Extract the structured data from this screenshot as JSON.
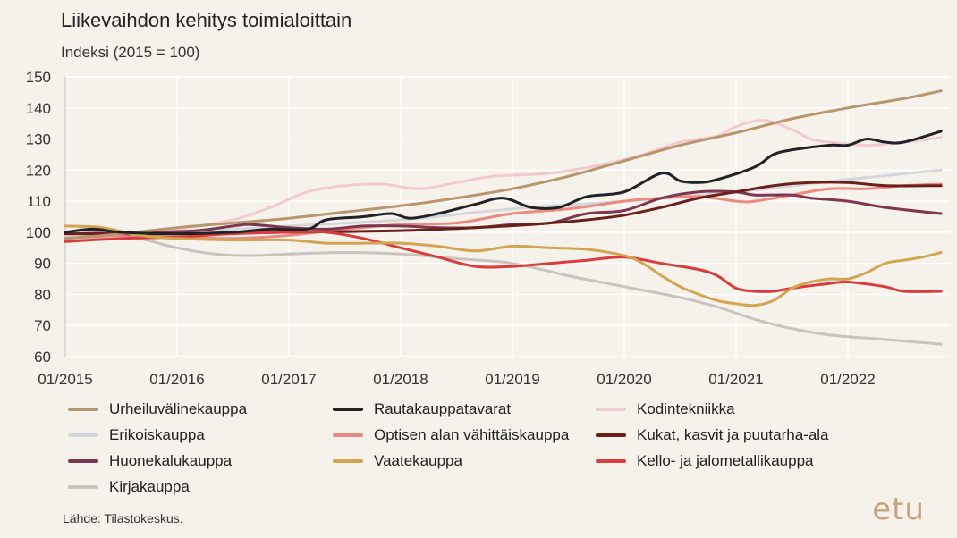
{
  "title": "Liikevaihdon kehitys toimialoittain",
  "subtitle": "Indeksi (2015 = 100)",
  "source": "Lähde: Tilastokeskus.",
  "logo": "etu",
  "chart_data": {
    "type": "line",
    "title": "Liikevaihdon kehitys toimialoittain",
    "subtitle": "Indeksi (2015 = 100)",
    "x_labels": [
      "01/2015",
      "01/2016",
      "01/2017",
      "01/2018",
      "01/2019",
      "01/2020",
      "01/2021",
      "01/2022"
    ],
    "x_start": "2015-01",
    "ylim": [
      60,
      150
    ],
    "yticks": [
      60,
      70,
      80,
      90,
      100,
      110,
      120,
      130,
      140,
      150
    ],
    "grid": true,
    "legend_position": "bottom",
    "series": [
      {
        "name": "Urheiluvälinekauppa",
        "color": "#b8956a",
        "points": [
          [
            0,
            98
          ],
          [
            6,
            99.5
          ],
          [
            12,
            101.5
          ],
          [
            18,
            103
          ],
          [
            24,
            104.5
          ],
          [
            30,
            106.5
          ],
          [
            36,
            108.5
          ],
          [
            42,
            111
          ],
          [
            48,
            114
          ],
          [
            54,
            118
          ],
          [
            60,
            123
          ],
          [
            66,
            128
          ],
          [
            72,
            132
          ],
          [
            78,
            136.5
          ],
          [
            84,
            140
          ],
          [
            90,
            143
          ],
          [
            94,
            145.5
          ]
        ]
      },
      {
        "name": "Rautakauppatavarat",
        "color": "#222226",
        "points": [
          [
            0,
            100
          ],
          [
            3,
            101
          ],
          [
            6,
            100
          ],
          [
            12,
            99.5
          ],
          [
            18,
            100
          ],
          [
            22,
            101
          ],
          [
            26,
            101
          ],
          [
            28,
            104
          ],
          [
            32,
            105
          ],
          [
            35,
            106
          ],
          [
            37,
            104.5
          ],
          [
            40,
            106
          ],
          [
            44,
            109
          ],
          [
            47,
            111
          ],
          [
            50,
            108
          ],
          [
            53,
            108
          ],
          [
            56,
            111.5
          ],
          [
            60,
            113
          ],
          [
            64,
            119
          ],
          [
            66,
            116.5
          ],
          [
            68,
            116
          ],
          [
            70,
            117
          ],
          [
            74,
            121
          ],
          [
            76,
            125
          ],
          [
            78,
            126.5
          ],
          [
            82,
            128
          ],
          [
            84,
            128
          ],
          [
            86,
            130
          ],
          [
            88,
            129
          ],
          [
            90,
            129
          ],
          [
            94,
            132.5
          ]
        ]
      },
      {
        "name": "Kodintekniikka",
        "color": "#f3c9cf",
        "points": [
          [
            0,
            97
          ],
          [
            6,
            99
          ],
          [
            12,
            101
          ],
          [
            18,
            104
          ],
          [
            22,
            108
          ],
          [
            26,
            113
          ],
          [
            30,
            115
          ],
          [
            34,
            115.5
          ],
          [
            38,
            114
          ],
          [
            42,
            116
          ],
          [
            46,
            118
          ],
          [
            52,
            119
          ],
          [
            58,
            122
          ],
          [
            62,
            125
          ],
          [
            66,
            129
          ],
          [
            70,
            131
          ],
          [
            72,
            134
          ],
          [
            75,
            136
          ],
          [
            78,
            133
          ],
          [
            80,
            130
          ],
          [
            82,
            129
          ],
          [
            86,
            128
          ],
          [
            90,
            129
          ],
          [
            94,
            130.5
          ]
        ]
      },
      {
        "name": "Erikoiskauppa",
        "color": "#d4d6da",
        "points": [
          [
            0,
            99
          ],
          [
            12,
            100
          ],
          [
            24,
            102
          ],
          [
            36,
            104
          ],
          [
            48,
            107.5
          ],
          [
            60,
            110
          ],
          [
            72,
            113
          ],
          [
            84,
            117
          ],
          [
            94,
            120
          ]
        ]
      },
      {
        "name": "Optisen alan vähittäiskauppa",
        "color": "#ec8a80",
        "points": [
          [
            0,
            98
          ],
          [
            6,
            99
          ],
          [
            12,
            98.5
          ],
          [
            18,
            98
          ],
          [
            24,
            99
          ],
          [
            30,
            101
          ],
          [
            36,
            102.5
          ],
          [
            42,
            103
          ],
          [
            48,
            106
          ],
          [
            54,
            107.5
          ],
          [
            60,
            110
          ],
          [
            64,
            111
          ],
          [
            68,
            111.5
          ],
          [
            72,
            110
          ],
          [
            74,
            110
          ],
          [
            78,
            112
          ],
          [
            82,
            114
          ],
          [
            86,
            114
          ],
          [
            90,
            115
          ],
          [
            94,
            115.5
          ]
        ]
      },
      {
        "name": "Kukat, kasvit ja puutarha-ala",
        "color": "#6b1f1a",
        "points": [
          [
            0,
            99.5
          ],
          [
            12,
            99.5
          ],
          [
            24,
            100
          ],
          [
            36,
            100.5
          ],
          [
            44,
            101.5
          ],
          [
            50,
            102.5
          ],
          [
            56,
            104
          ],
          [
            60,
            105.5
          ],
          [
            64,
            108
          ],
          [
            68,
            111
          ],
          [
            72,
            113
          ],
          [
            76,
            115
          ],
          [
            80,
            116
          ],
          [
            84,
            116
          ],
          [
            88,
            115
          ],
          [
            94,
            115
          ]
        ]
      },
      {
        "name": "Huonekalukauppa",
        "color": "#7d3550",
        "points": [
          [
            0,
            99.5
          ],
          [
            8,
            100
          ],
          [
            14,
            100.5
          ],
          [
            18,
            102
          ],
          [
            20,
            102.5
          ],
          [
            24,
            101.5
          ],
          [
            28,
            101
          ],
          [
            32,
            102
          ],
          [
            36,
            102
          ],
          [
            40,
            101.5
          ],
          [
            44,
            101.5
          ],
          [
            48,
            102.5
          ],
          [
            52,
            103
          ],
          [
            56,
            106
          ],
          [
            60,
            107
          ],
          [
            64,
            111
          ],
          [
            68,
            113
          ],
          [
            72,
            113
          ],
          [
            74,
            112
          ],
          [
            78,
            112
          ],
          [
            80,
            111
          ],
          [
            84,
            110
          ],
          [
            88,
            108
          ],
          [
            94,
            106
          ]
        ]
      },
      {
        "name": "Vaatekauppa",
        "color": "#d1a552",
        "points": [
          [
            0,
            102
          ],
          [
            4,
            101.5
          ],
          [
            8,
            99
          ],
          [
            12,
            98
          ],
          [
            18,
            97.5
          ],
          [
            24,
            97.5
          ],
          [
            28,
            96.5
          ],
          [
            32,
            96.5
          ],
          [
            36,
            96.5
          ],
          [
            40,
            95.5
          ],
          [
            44,
            94
          ],
          [
            48,
            95.5
          ],
          [
            52,
            95
          ],
          [
            56,
            94.5
          ],
          [
            60,
            92.5
          ],
          [
            62,
            90
          ],
          [
            64,
            86
          ],
          [
            66,
            82.5
          ],
          [
            68,
            80
          ],
          [
            70,
            78
          ],
          [
            72,
            77
          ],
          [
            74,
            76.5
          ],
          [
            76,
            78
          ],
          [
            78,
            82
          ],
          [
            80,
            84
          ],
          [
            82,
            85
          ],
          [
            84,
            85
          ],
          [
            86,
            87
          ],
          [
            88,
            90
          ],
          [
            90,
            91
          ],
          [
            92,
            92
          ],
          [
            94,
            93.5
          ]
        ]
      },
      {
        "name": "Kello- ja jalometallikauppa",
        "color": "#d93c3c",
        "points": [
          [
            0,
            97
          ],
          [
            6,
            98
          ],
          [
            12,
            98.5
          ],
          [
            18,
            99.5
          ],
          [
            24,
            100
          ],
          [
            28,
            100
          ],
          [
            32,
            98
          ],
          [
            36,
            95
          ],
          [
            40,
            92
          ],
          [
            44,
            89
          ],
          [
            48,
            89
          ],
          [
            52,
            90
          ],
          [
            56,
            91
          ],
          [
            60,
            92
          ],
          [
            64,
            90
          ],
          [
            68,
            88
          ],
          [
            70,
            86
          ],
          [
            72,
            82
          ],
          [
            74,
            81
          ],
          [
            76,
            81
          ],
          [
            78,
            82
          ],
          [
            82,
            83.5
          ],
          [
            84,
            84
          ],
          [
            88,
            82.5
          ],
          [
            90,
            81
          ],
          [
            94,
            81
          ]
        ]
      },
      {
        "name": "Kirjakauppa",
        "color": "#c8c3bd",
        "points": [
          [
            0,
            98
          ],
          [
            6,
            99
          ],
          [
            12,
            95
          ],
          [
            16,
            93
          ],
          [
            20,
            92.5
          ],
          [
            24,
            93
          ],
          [
            30,
            93.5
          ],
          [
            36,
            93
          ],
          [
            42,
            91.5
          ],
          [
            48,
            90
          ],
          [
            54,
            86
          ],
          [
            60,
            82.5
          ],
          [
            66,
            79
          ],
          [
            70,
            76
          ],
          [
            74,
            72
          ],
          [
            78,
            69
          ],
          [
            82,
            67
          ],
          [
            88,
            65.5
          ],
          [
            94,
            64
          ]
        ]
      }
    ]
  }
}
